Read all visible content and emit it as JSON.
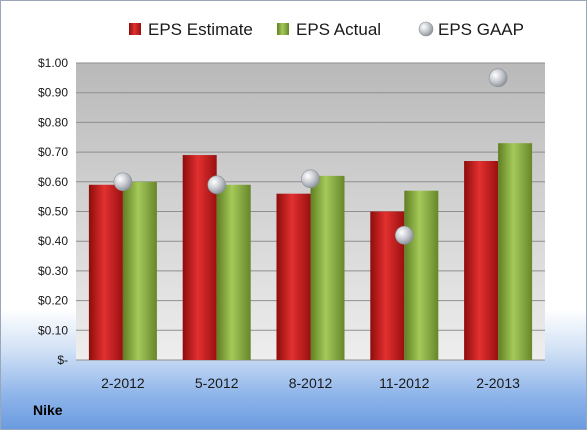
{
  "company_label": "Nike",
  "chart_data": {
    "type": "bar",
    "categories": [
      "2-2012",
      "5-2012",
      "8-2012",
      "11-2012",
      "2-2013"
    ],
    "series": [
      {
        "name": "EPS Estimate",
        "type": "bar",
        "color": "#cc1f1f",
        "values": [
          0.59,
          0.69,
          0.56,
          0.5,
          0.67
        ]
      },
      {
        "name": "EPS Actual",
        "type": "bar",
        "color": "#8cb33f",
        "values": [
          0.6,
          0.59,
          0.62,
          0.57,
          0.73
        ]
      },
      {
        "name": "EPS GAAP",
        "type": "scatter",
        "color": "#b8bcc4",
        "values": [
          0.6,
          0.59,
          0.61,
          0.42,
          0.95
        ]
      }
    ],
    "y_ticks": [
      "$-",
      "$0.10",
      "$0.20",
      "$0.30",
      "$0.40",
      "$0.50",
      "$0.60",
      "$0.70",
      "$0.80",
      "$0.90",
      "$1.00"
    ],
    "ylim": [
      0,
      1.0
    ],
    "grid": true,
    "legend_position": "top"
  }
}
